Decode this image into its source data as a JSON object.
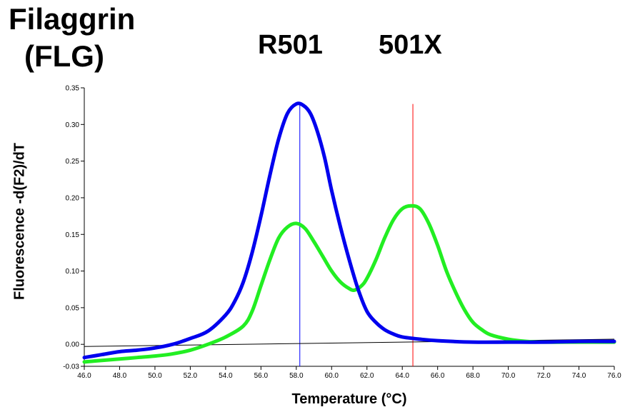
{
  "chart_data": {
    "type": "line",
    "title": [
      "Filaggrin",
      "(FLG)"
    ],
    "peak_labels": [
      {
        "text": "R501",
        "x": 58.2
      },
      {
        "text": "501X",
        "x": 64.6
      }
    ],
    "xlabel": "Temperature (°C)",
    "ylabel": "Fluorescence -d(F2)/dT",
    "xlim": [
      46.0,
      76.0
    ],
    "ylim": [
      -0.03,
      0.35
    ],
    "xticks": [
      "46.0",
      "48.0",
      "50.0",
      "52.0",
      "54.0",
      "56.0",
      "58.0",
      "60.0",
      "62.0",
      "64.0",
      "66.0",
      "68.0",
      "70.0",
      "72.0",
      "74.0",
      "76.0"
    ],
    "yticks": [
      "0.35",
      "0.30",
      "0.25",
      "0.20",
      "0.15",
      "0.10",
      "0.05",
      "0.00",
      "-0.03"
    ],
    "ytick_values": [
      0.35,
      0.3,
      0.25,
      0.2,
      0.15,
      0.1,
      0.05,
      0.0,
      -0.03
    ],
    "grid": false,
    "baseline": {
      "color": "#000000",
      "x": [
        46.0,
        76.0
      ],
      "y": [
        -0.003,
        0.007
      ]
    },
    "vertical_markers": [
      {
        "x": 58.2,
        "color": "#0000ff"
      },
      {
        "x": 64.6,
        "color": "#ff0000"
      }
    ],
    "series": [
      {
        "color": "#0000ee",
        "x": [
          46.0,
          47.0,
          48.0,
          49.0,
          50.0,
          51.0,
          52.0,
          53.0,
          54.0,
          54.5,
          55.0,
          55.5,
          56.0,
          56.5,
          57.0,
          57.5,
          58.0,
          58.4,
          58.8,
          59.2,
          59.6,
          60.0,
          60.5,
          61.0,
          61.5,
          62.0,
          62.5,
          63.0,
          63.5,
          64.0,
          65.0,
          66.0,
          68.0,
          70.0,
          72.0,
          74.0,
          76.0
        ],
        "y": [
          -0.018,
          -0.014,
          -0.01,
          -0.008,
          -0.005,
          0.0,
          0.008,
          0.018,
          0.04,
          0.058,
          0.085,
          0.125,
          0.175,
          0.23,
          0.28,
          0.315,
          0.328,
          0.326,
          0.315,
          0.29,
          0.255,
          0.21,
          0.16,
          0.115,
          0.075,
          0.045,
          0.03,
          0.02,
          0.014,
          0.01,
          0.007,
          0.005,
          0.003,
          0.003,
          0.003,
          0.004,
          0.004
        ]
      },
      {
        "color": "#22ee22",
        "x": [
          46.0,
          47.0,
          48.0,
          49.0,
          50.0,
          51.0,
          52.0,
          53.0,
          54.0,
          55.0,
          55.5,
          56.0,
          56.5,
          57.0,
          57.5,
          58.0,
          58.5,
          59.0,
          59.5,
          60.0,
          60.5,
          61.0,
          61.3,
          61.7,
          62.0,
          62.5,
          63.0,
          63.5,
          64.0,
          64.5,
          65.0,
          65.5,
          66.0,
          66.5,
          67.0,
          67.5,
          68.0,
          68.5,
          69.0,
          70.0,
          71.0,
          72.0,
          74.0,
          76.0
        ],
        "y": [
          -0.024,
          -0.022,
          -0.02,
          -0.018,
          -0.016,
          -0.013,
          -0.008,
          0.0,
          0.01,
          0.025,
          0.045,
          0.08,
          0.115,
          0.145,
          0.16,
          0.165,
          0.158,
          0.14,
          0.12,
          0.1,
          0.085,
          0.076,
          0.074,
          0.08,
          0.09,
          0.115,
          0.145,
          0.17,
          0.185,
          0.189,
          0.185,
          0.165,
          0.135,
          0.1,
          0.072,
          0.048,
          0.03,
          0.02,
          0.013,
          0.007,
          0.004,
          0.003,
          0.003,
          0.003
        ]
      }
    ]
  }
}
